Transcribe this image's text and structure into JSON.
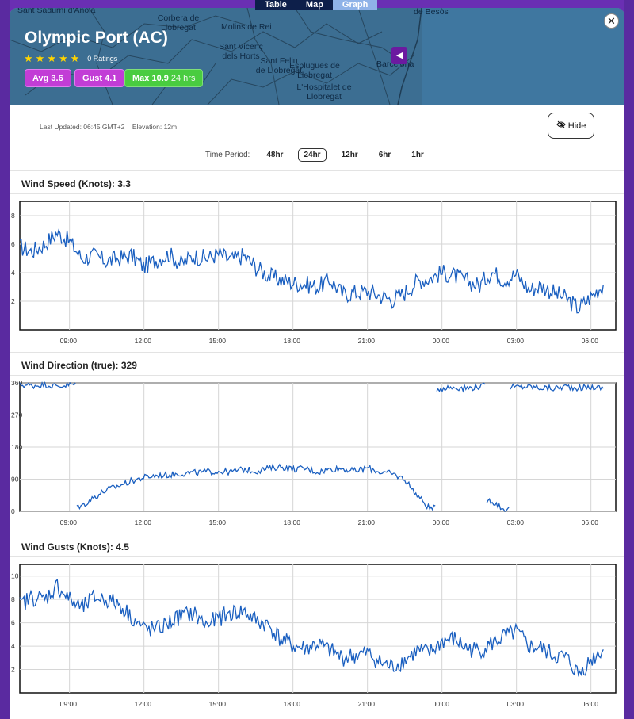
{
  "nav": {
    "tabs": [
      "Table",
      "Map",
      "Graph"
    ],
    "active": "Graph"
  },
  "header": {
    "title": "Olympic Port (AC)",
    "stars": 5,
    "ratings_text": "0 Ratings",
    "badges": {
      "avg": "Avg 3.6",
      "gust": "Gust 4.1",
      "max": "Max 10.9",
      "max_sub": "24 hrs"
    },
    "map_labels": [
      "Sant Sadurni d'Anoia",
      "Corbera de Llobregat",
      "Molins de Rei",
      "Sant Vicenç dels Horts",
      "Sant Feliu de Llobregat",
      "Esplugues de Llobregat",
      "L'Hospitalet de Llobregat",
      "Barcelona",
      "de Besòs"
    ]
  },
  "meta": {
    "updated": "Last Updated: 06:45 GMT+2",
    "elevation": "Elevation: 12m"
  },
  "hide_label": "Hide",
  "period": {
    "label": "Time Period:",
    "options": [
      "48hr",
      "24hr",
      "12hr",
      "6hr",
      "1hr"
    ],
    "selected": "24hr"
  },
  "colors": {
    "line": "#1a5fc0",
    "header_bg": "#3c6e92",
    "avg": "#c23dd6",
    "max": "#49cc40"
  },
  "charts": {
    "speed": {
      "title": "Wind Speed (Knots): 3.3"
    },
    "direction": {
      "title": "Wind Direction (true): 329"
    },
    "gusts": {
      "title": "Wind Gusts (Knots): 4.5"
    }
  },
  "chart_data": [
    {
      "type": "line",
      "title": "Wind Speed (Knots): 3.3",
      "x": [
        "07:00",
        "07:30",
        "08:00",
        "08:30",
        "09:00",
        "09:30",
        "10:00",
        "10:30",
        "11:00",
        "11:30",
        "12:00",
        "12:30",
        "13:00",
        "13:30",
        "14:00",
        "14:30",
        "15:00",
        "15:30",
        "16:00",
        "16:30",
        "17:00",
        "17:30",
        "18:00",
        "18:30",
        "19:00",
        "19:30",
        "20:00",
        "20:30",
        "21:00",
        "21:30",
        "22:00",
        "22:30",
        "23:00",
        "23:30",
        "00:00",
        "00:30",
        "01:00",
        "01:30",
        "02:00",
        "02:30",
        "03:00",
        "03:30",
        "04:00",
        "04:30",
        "05:00",
        "05:30",
        "06:00",
        "06:30"
      ],
      "series": [
        {
          "values": [
            5.8,
            5.5,
            6.0,
            6.8,
            6.2,
            5.0,
            5.2,
            4.8,
            5.0,
            5.2,
            4.4,
            4.9,
            5.3,
            4.6,
            5.2,
            5.0,
            5.3,
            4.9,
            5.2,
            4.4,
            3.8,
            3.5,
            3.3,
            3.2,
            3.0,
            3.5,
            2.5,
            2.6,
            2.7,
            2.4,
            2.1,
            2.6,
            3.4,
            3.6,
            4.0,
            3.8,
            3.4,
            3.1,
            4.1,
            3.5,
            3.9,
            2.8,
            3.1,
            2.6,
            2.2,
            1.5,
            2.3,
            3.2
          ]
        }
      ],
      "xticks": [
        "09:00",
        "12:00",
        "15:00",
        "18:00",
        "21:00",
        "00:00",
        "03:00",
        "06:00"
      ],
      "ylim": [
        0,
        9
      ],
      "yticks": [
        2,
        4,
        6,
        8
      ],
      "grid": true
    },
    {
      "type": "line",
      "title": "Wind Direction (true): 329",
      "x": [
        "07:00",
        "07:30",
        "08:00",
        "08:30",
        "09:00",
        "09:30",
        "10:00",
        "10:30",
        "11:00",
        "11:30",
        "12:00",
        "12:30",
        "13:00",
        "13:30",
        "14:00",
        "14:30",
        "15:00",
        "15:30",
        "16:00",
        "16:30",
        "17:00",
        "17:30",
        "18:00",
        "18:30",
        "19:00",
        "19:30",
        "20:00",
        "20:30",
        "21:00",
        "21:30",
        "22:00",
        "22:30",
        "23:00",
        "23:30",
        "00:00",
        "00:30",
        "01:00",
        "01:30",
        "02:00",
        "02:30",
        "03:00",
        "03:30",
        "04:00",
        "04:30",
        "05:00",
        "05:30",
        "06:00",
        "06:30"
      ],
      "series": [
        {
          "values": [
            355,
            352,
            356,
            350,
            355,
            15,
            40,
            60,
            72,
            85,
            95,
            100,
            102,
            106,
            108,
            110,
            112,
            110,
            118,
            112,
            120,
            125,
            118,
            120,
            110,
            118,
            120,
            112,
            122,
            110,
            105,
            90,
            45,
            8,
            345,
            348,
            345,
            350,
            30,
            5,
            348,
            350,
            346,
            344,
            350,
            346,
            348,
            345
          ]
        }
      ],
      "xticks": [
        "09:00",
        "12:00",
        "15:00",
        "18:00",
        "21:00",
        "00:00",
        "03:00",
        "06:00"
      ],
      "ylim": [
        0,
        360
      ],
      "yticks": [
        0,
        90,
        180,
        270,
        360
      ],
      "grid": true
    },
    {
      "type": "line",
      "title": "Wind Gusts (Knots): 4.5",
      "x": [
        "07:00",
        "07:30",
        "08:00",
        "08:30",
        "09:00",
        "09:30",
        "10:00",
        "10:30",
        "11:00",
        "11:30",
        "12:00",
        "12:30",
        "13:00",
        "13:30",
        "14:00",
        "14:30",
        "15:00",
        "15:30",
        "16:00",
        "16:30",
        "17:00",
        "17:30",
        "18:00",
        "18:30",
        "19:00",
        "19:30",
        "20:00",
        "20:30",
        "21:00",
        "21:30",
        "22:00",
        "22:30",
        "23:00",
        "23:30",
        "00:00",
        "00:30",
        "01:00",
        "01:30",
        "02:00",
        "02:30",
        "03:00",
        "03:30",
        "04:00",
        "04:30",
        "05:00",
        "05:30",
        "06:00",
        "06:30"
      ],
      "series": [
        {
          "values": [
            7.5,
            8.2,
            8.0,
            9.2,
            8.0,
            7.2,
            8.2,
            8.0,
            7.6,
            6.5,
            5.5,
            5.4,
            6.0,
            6.6,
            6.8,
            5.8,
            6.4,
            6.8,
            7.0,
            6.2,
            5.8,
            4.6,
            4.0,
            3.8,
            4.2,
            3.6,
            3.0,
            3.2,
            3.4,
            2.6,
            2.2,
            2.8,
            3.6,
            3.4,
            4.4,
            4.6,
            3.8,
            3.6,
            4.2,
            4.8,
            5.2,
            4.0,
            3.8,
            3.2,
            3.0,
            1.6,
            2.8,
            3.8
          ]
        }
      ],
      "xticks": [
        "09:00",
        "12:00",
        "15:00",
        "18:00",
        "21:00",
        "00:00",
        "03:00",
        "06:00"
      ],
      "ylim": [
        0,
        11
      ],
      "yticks": [
        2,
        4,
        6,
        8,
        10
      ],
      "grid": true
    }
  ]
}
